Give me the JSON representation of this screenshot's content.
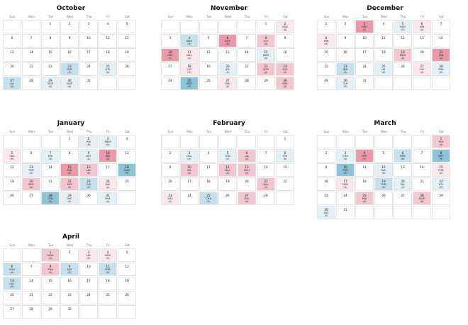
{
  "chart_data": {
    "type": "calendar-heatmap",
    "weekday_labels": [
      "Sun",
      "Mon",
      "Tue",
      "Wed",
      "Thu",
      "Fri",
      "Sat"
    ],
    "legend": {
      "home_marker": "(H)",
      "away_marker": "(A)"
    },
    "color_scale": {
      "strong_win": "#8fc3d8",
      "win": "#c6e0ec",
      "slight_win": "#e4f0f6",
      "slight_loss": "#fbe8ec",
      "loss": "#f3c7d1",
      "strong_loss": "#e89aab"
    },
    "months": [
      {
        "name": "October",
        "start_weekday": 2,
        "days": 31,
        "games": [
          {
            "day": 23,
            "opp": "POR",
            "loc": "(H)",
            "level": "win"
          },
          {
            "day": 25,
            "opp": "UTA",
            "loc": "(A)",
            "level": "slight_win"
          },
          {
            "day": 27,
            "opp": "LAC",
            "loc": "(A)",
            "level": "win"
          },
          {
            "day": 29,
            "opp": "NOP",
            "loc": "(A)",
            "level": "slight_win"
          },
          {
            "day": 30,
            "opp": "NOP",
            "loc": "(A)",
            "level": "slight_win"
          }
        ]
      },
      {
        "name": "November",
        "start_weekday": 5,
        "days": 30,
        "games": [
          {
            "day": 2,
            "opp": "HOU",
            "loc": "(A)",
            "level": "slight_loss"
          },
          {
            "day": 4,
            "opp": "WAS",
            "loc": "(H)",
            "level": "win"
          },
          {
            "day": 6,
            "opp": "BOS",
            "loc": "(H)",
            "level": "strong_loss"
          },
          {
            "day": 8,
            "opp": "CLE",
            "loc": "(A)",
            "level": "loss"
          },
          {
            "day": 10,
            "opp": "OKC",
            "loc": "(H)",
            "level": "strong_loss"
          },
          {
            "day": 11,
            "opp": "DAL",
            "loc": "(A)",
            "level": "slight_loss"
          },
          {
            "day": 15,
            "opp": "MEM",
            "loc": "(A)",
            "level": "slight_win"
          },
          {
            "day": 18,
            "opp": "LAC",
            "loc": "(H)",
            "level": "slight_loss"
          },
          {
            "day": 20,
            "opp": "ATL",
            "loc": "(H)",
            "level": "slight_win"
          },
          {
            "day": 22,
            "opp": "NOP",
            "loc": "(A)",
            "level": "loss"
          },
          {
            "day": 23,
            "opp": "SAS",
            "loc": "(A)",
            "level": "loss"
          },
          {
            "day": 25,
            "opp": "BKN",
            "loc": "(H)",
            "level": "strong_win"
          },
          {
            "day": 27,
            "opp": "OKC",
            "loc": "(A)",
            "level": "slight_loss"
          },
          {
            "day": 30,
            "opp": "PHX",
            "loc": "(A)",
            "level": "loss"
          }
        ]
      },
      {
        "name": "December",
        "start_weekday": 0,
        "days": 31,
        "games": [
          {
            "day": 3,
            "opp": "DEN",
            "loc": "(A)",
            "level": "strong_loss"
          },
          {
            "day": 5,
            "opp": "HOU",
            "loc": "(H)",
            "level": "slight_win"
          },
          {
            "day": 6,
            "opp": "MIN",
            "loc": "(A)",
            "level": "slight_loss"
          },
          {
            "day": 8,
            "opp": "MIN",
            "loc": "(H)",
            "level": "slight_loss"
          },
          {
            "day": 19,
            "opp": "MEM",
            "loc": "(A)",
            "level": "loss"
          },
          {
            "day": 21,
            "opp": "MIN",
            "loc": "(A)",
            "level": "strong_loss"
          },
          {
            "day": 23,
            "opp": "IND",
            "loc": "(H)",
            "level": "win"
          },
          {
            "day": 25,
            "opp": "LAL",
            "loc": "(A)",
            "level": "slight_win"
          },
          {
            "day": 27,
            "opp": "LAC",
            "loc": "(A)",
            "level": "slight_loss"
          },
          {
            "day": 28,
            "opp": "PHX",
            "loc": "(H)",
            "level": "slight_win"
          },
          {
            "day": 30,
            "opp": "CLE",
            "loc": "(H)",
            "level": "slight_win"
          }
        ]
      },
      {
        "name": "January",
        "start_weekday": 3,
        "days": 31,
        "games": [
          {
            "day": 2,
            "opp": "PHI",
            "loc": "(H)",
            "level": "slight_win"
          },
          {
            "day": 3,
            "opp": "MEM",
            "loc": "(H)",
            "level": "slight_win"
          },
          {
            "day": 5,
            "opp": "SAC",
            "loc": "(H)",
            "level": "slight_loss"
          },
          {
            "day": 7,
            "opp": "MIA",
            "loc": "(A)",
            "level": "slight_win"
          },
          {
            "day": 9,
            "opp": "DET",
            "loc": "(A)",
            "level": "slight_win"
          },
          {
            "day": 10,
            "opp": "IND",
            "loc": "(A)",
            "level": "strong_loss"
          },
          {
            "day": 13,
            "opp": "TOR",
            "loc": "(A)",
            "level": "slight_win"
          },
          {
            "day": 15,
            "opp": "MIN",
            "loc": "(A)",
            "level": "strong_loss"
          },
          {
            "day": 16,
            "opp": "LAC",
            "loc": "(A)",
            "level": "loss"
          },
          {
            "day": 18,
            "opp": "WAS",
            "loc": "(H)",
            "level": "strong_win"
          },
          {
            "day": 20,
            "opp": "BOS",
            "loc": "(A)",
            "level": "loss"
          },
          {
            "day": 22,
            "opp": "SAS",
            "loc": "(A)",
            "level": "loss"
          },
          {
            "day": 23,
            "opp": "CHI",
            "loc": "(H)",
            "level": "win"
          },
          {
            "day": 24,
            "opp": "SAC",
            "loc": "(A)",
            "level": "slight_loss"
          },
          {
            "day": 28,
            "opp": "UTA",
            "loc": "(H)",
            "level": "strong_win"
          },
          {
            "day": 29,
            "opp": "OKC",
            "loc": "(H)",
            "level": "slight_win"
          },
          {
            "day": 31,
            "opp": "PHX",
            "loc": "(A)",
            "level": "slight_win"
          }
        ]
      },
      {
        "name": "February",
        "start_weekday": 6,
        "days": 28,
        "games": [
          {
            "day": 3,
            "opp": "ORL",
            "loc": "(H)",
            "level": "slight_win"
          },
          {
            "day": 5,
            "opp": "UTA",
            "loc": "(A)",
            "level": "slight_win"
          },
          {
            "day": 6,
            "opp": "LAL",
            "loc": "(A)",
            "level": "loss"
          },
          {
            "day": 8,
            "opp": "CHI",
            "loc": "(A)",
            "level": "slight_win"
          },
          {
            "day": 10,
            "opp": "MIL",
            "loc": "(A)",
            "level": "loss"
          },
          {
            "day": 12,
            "opp": "DAL",
            "loc": "(A)",
            "level": "loss"
          },
          {
            "day": 13,
            "opp": "HOU",
            "loc": "(A)",
            "level": "loss"
          },
          {
            "day": 21,
            "opp": "DAL",
            "loc": "(H)",
            "level": "loss"
          },
          {
            "day": 23,
            "opp": "DAL",
            "loc": "(H)",
            "level": "slight_loss"
          },
          {
            "day": 25,
            "opp": "CHA",
            "loc": "(H)",
            "level": "win"
          },
          {
            "day": 27,
            "opp": "ORL",
            "loc": "(A)",
            "level": "loss"
          }
        ]
      },
      {
        "name": "March",
        "start_weekday": 6,
        "days": 31,
        "games": [
          {
            "day": 1,
            "opp": "PHI",
            "loc": "(A)",
            "level": "loss"
          },
          {
            "day": 3,
            "opp": "CHA",
            "loc": "(A)",
            "level": "slight_win"
          },
          {
            "day": 4,
            "opp": "NYK",
            "loc": "(H)",
            "level": "strong_loss"
          },
          {
            "day": 6,
            "opp": "BKN",
            "loc": "(A)",
            "level": "win"
          },
          {
            "day": 8,
            "opp": "DET",
            "loc": "(H)",
            "level": "strong_win"
          },
          {
            "day": 10,
            "opp": "POR",
            "loc": "(H)",
            "level": "strong_win"
          },
          {
            "day": 12,
            "opp": "SAC",
            "loc": "(H)",
            "level": "slight_win"
          },
          {
            "day": 15,
            "opp": "NYK",
            "loc": "(A)",
            "level": "slight_loss"
          },
          {
            "day": 17,
            "opp": "DEN",
            "loc": "(H)",
            "level": "slight_loss"
          },
          {
            "day": 19,
            "opp": "TOR",
            "loc": "(H)",
            "level": "win"
          },
          {
            "day": 20,
            "opp": "MIL",
            "loc": "(H)",
            "level": "slight_win"
          },
          {
            "day": 22,
            "opp": "ATL",
            "loc": "(H)",
            "level": "slight_win"
          },
          {
            "day": 25,
            "opp": "MIA",
            "loc": "(H)",
            "level": "loss"
          },
          {
            "day": 28,
            "opp": "NOP",
            "loc": "(A)",
            "level": "loss"
          },
          {
            "day": 30,
            "opp": "SAS",
            "loc": "(A)",
            "level": "slight_win"
          }
        ]
      },
      {
        "name": "April",
        "start_weekday": 2,
        "days": 30,
        "games": [
          {
            "day": 1,
            "opp": "MEM",
            "loc": "(A)",
            "level": "loss"
          },
          {
            "day": 3,
            "opp": "LAL",
            "loc": "(H)",
            "level": "slight_loss"
          },
          {
            "day": 4,
            "opp": "DEN",
            "loc": "(H)",
            "level": "slight_loss"
          },
          {
            "day": 6,
            "opp": "HOU",
            "loc": "(H)",
            "level": "win"
          },
          {
            "day": 8,
            "opp": "PHX",
            "loc": "(A)",
            "level": "loss"
          },
          {
            "day": 9,
            "opp": "SAS",
            "loc": "(H)",
            "level": "win"
          },
          {
            "day": 11,
            "opp": "POR",
            "loc": "(A)",
            "level": "win"
          },
          {
            "day": 13,
            "opp": "LAC",
            "loc": "(H)",
            "level": "win"
          }
        ]
      }
    ]
  }
}
